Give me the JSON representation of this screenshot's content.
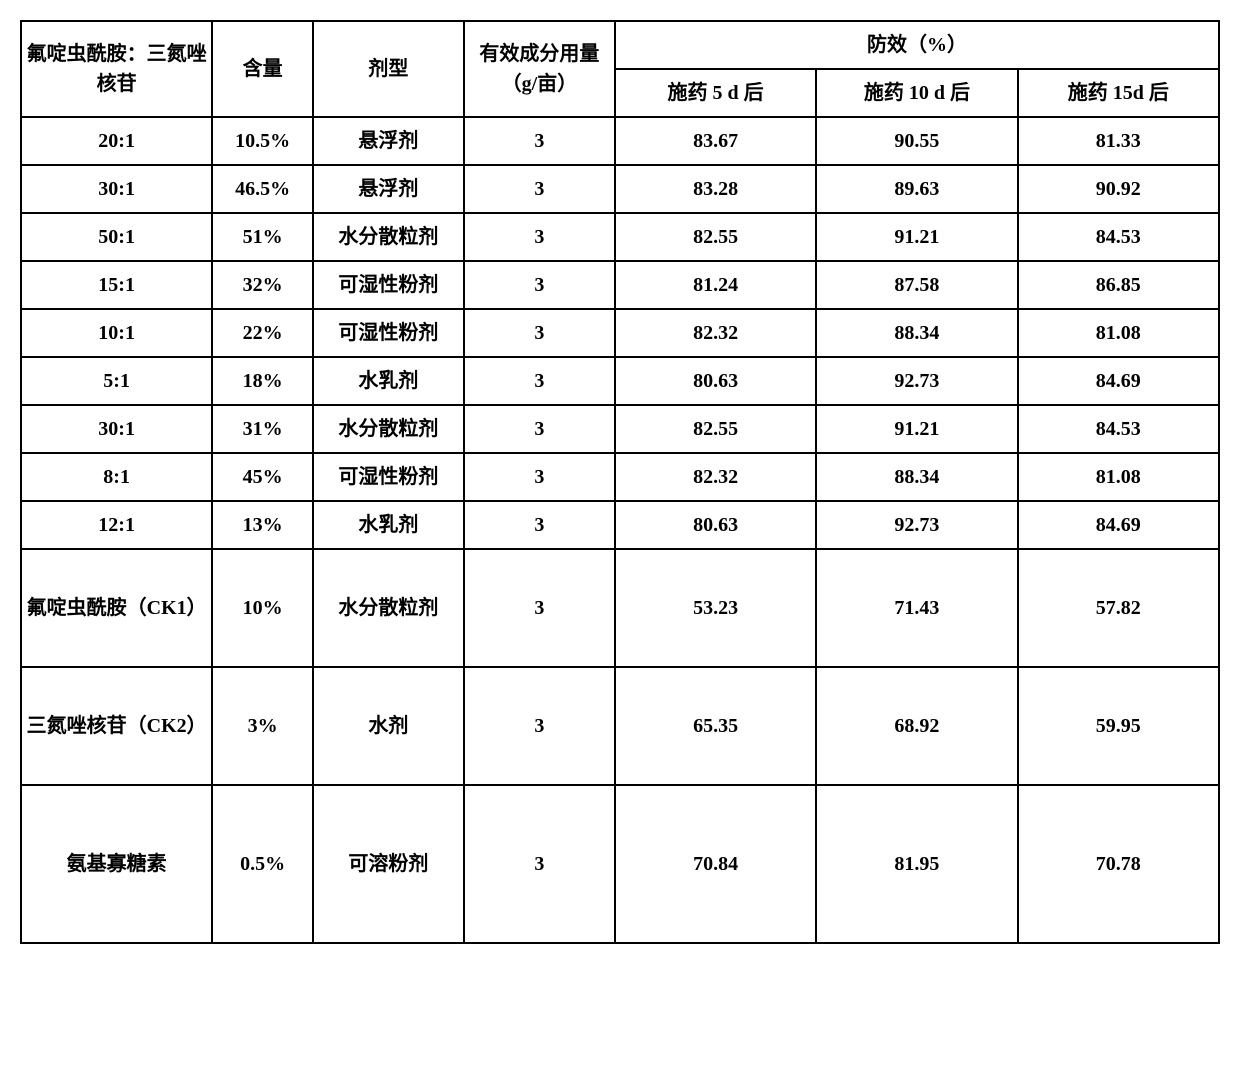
{
  "table": {
    "headers": {
      "ratio": "氟啶虫酰胺：三氮唑核苷",
      "content": "含量",
      "form": "剂型",
      "dose": "有效成分用量（g/亩）",
      "eff_group": "防效（%）",
      "eff5": "施药 5 d 后",
      "eff10": "施药 10 d 后",
      "eff15": "施药 15d 后"
    },
    "rows": [
      {
        "ratio": "20:1",
        "content": "10.5%",
        "form": "悬浮剂",
        "dose": "3",
        "e5": "83.67",
        "e10": "90.55",
        "e15": "81.33"
      },
      {
        "ratio": "30:1",
        "content": "46.5%",
        "form": "悬浮剂",
        "dose": "3",
        "e5": "83.28",
        "e10": "89.63",
        "e15": "90.92"
      },
      {
        "ratio": "50:1",
        "content": "51%",
        "form": "水分散粒剂",
        "dose": "3",
        "e5": "82.55",
        "e10": "91.21",
        "e15": "84.53"
      },
      {
        "ratio": "15:1",
        "content": "32%",
        "form": "可湿性粉剂",
        "dose": "3",
        "e5": "81.24",
        "e10": "87.58",
        "e15": "86.85"
      },
      {
        "ratio": "10:1",
        "content": "22%",
        "form": "可湿性粉剂",
        "dose": "3",
        "e5": "82.32",
        "e10": "88.34",
        "e15": "81.08"
      },
      {
        "ratio": "5:1",
        "content": "18%",
        "form": "水乳剂",
        "dose": "3",
        "e5": "80.63",
        "e10": "92.73",
        "e15": "84.69"
      },
      {
        "ratio": "30:1",
        "content": "31%",
        "form": "水分散粒剂",
        "dose": "3",
        "e5": "82.55",
        "e10": "91.21",
        "e15": "84.53"
      },
      {
        "ratio": "8:1",
        "content": "45%",
        "form": "可湿性粉剂",
        "dose": "3",
        "e5": "82.32",
        "e10": "88.34",
        "e15": "81.08"
      },
      {
        "ratio": "12:1",
        "content": "13%",
        "form": "水乳剂",
        "dose": "3",
        "e5": "80.63",
        "e10": "92.73",
        "e15": "84.69"
      },
      {
        "ratio": "氟啶虫酰胺（CK1）",
        "content": "10%",
        "form": "水分散粒剂",
        "dose": "3",
        "e5": "53.23",
        "e10": "71.43",
        "e15": "57.82",
        "tall": true
      },
      {
        "ratio": "三氮唑核苷（CK2）",
        "content": "3%",
        "form": "水剂",
        "dose": "3",
        "e5": "65.35",
        "e10": "68.92",
        "e15": "59.95",
        "tall": true
      },
      {
        "ratio": "氨基寡糖素",
        "content": "0.5%",
        "form": "可溶粉剂",
        "dose": "3",
        "e5": "70.84",
        "e10": "81.95",
        "e15": "70.78",
        "xtall": true
      }
    ],
    "styling": {
      "border_color": "#000000",
      "background": "#ffffff",
      "font_weight": "bold",
      "header_fontsize": 20,
      "cell_fontsize": 20,
      "col_widths": {
        "ratio": 190,
        "content": 100,
        "form": 150,
        "dose": 150,
        "eff": 200
      }
    }
  }
}
